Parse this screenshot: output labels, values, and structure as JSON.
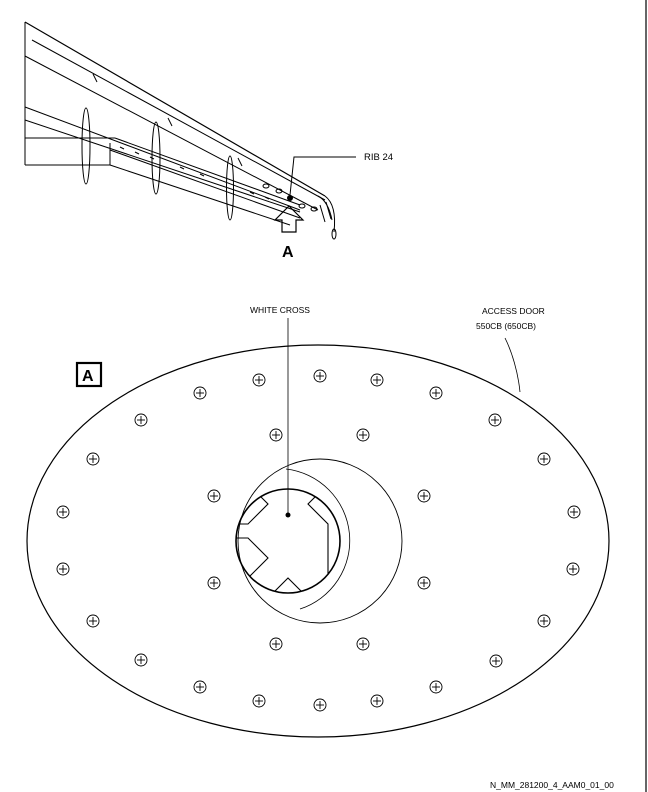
{
  "labels": {
    "rib": "RIB 24",
    "view_ref": "A",
    "white_cross": "WHITE CROSS",
    "access_door_line1": "ACCESS DOOR",
    "access_door_line2": "550CB (650CB)",
    "detail_tag": "A",
    "drawing_id": "N_MM_281200_4_AAM0_01_00"
  },
  "colors": {
    "ink": "#000000",
    "paper": "#ffffff"
  }
}
